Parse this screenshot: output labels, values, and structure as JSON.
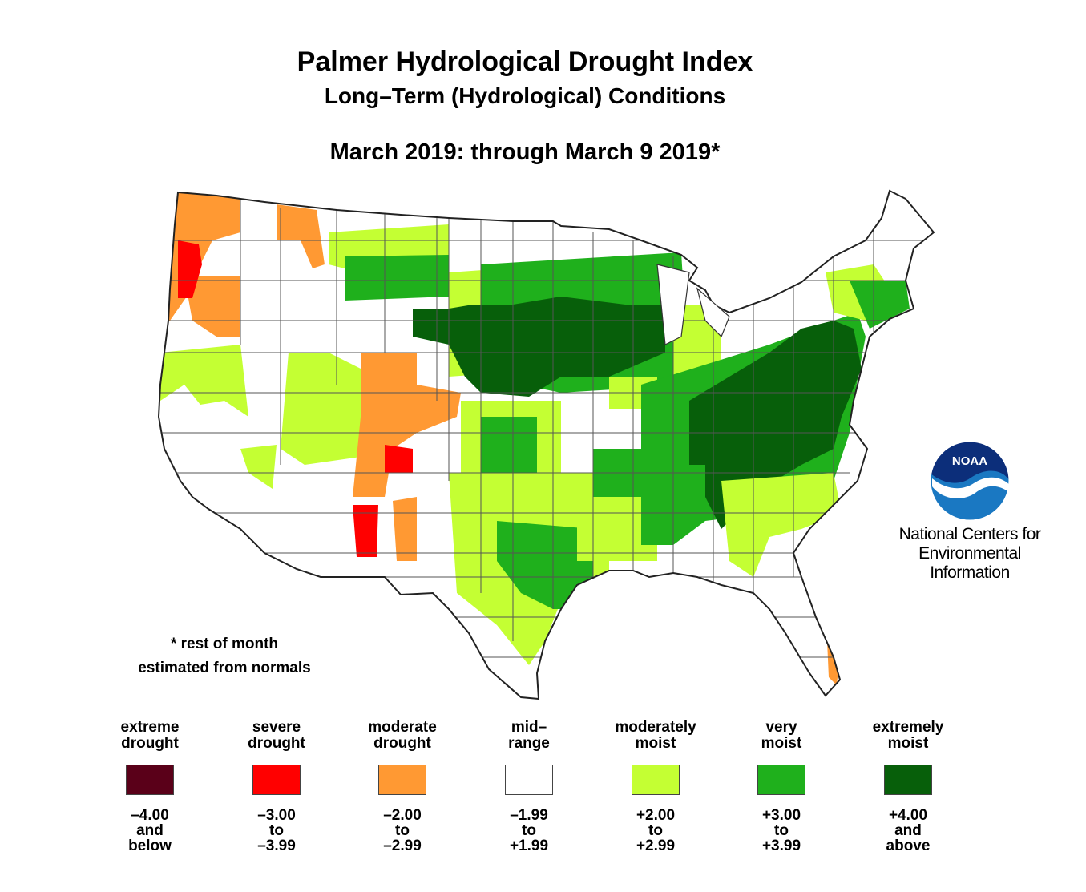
{
  "header": {
    "title": "Palmer Hydrological Drought Index",
    "subtitle": "Long–Term (Hydrological) Conditions",
    "period": "March 2019: through March  9 2019*"
  },
  "note": {
    "line1": "* rest of month",
    "line2": "estimated from normals"
  },
  "branding": {
    "logo_text": "NOAA",
    "org_line1": "National Centers for",
    "org_line2": "Environmental",
    "org_line3": "Information"
  },
  "legend": [
    {
      "label": "extreme\ndrought",
      "range": "–4.00\nand\nbelow",
      "color": "#5a0019"
    },
    {
      "label": "severe\ndrought",
      "range": "–3.00\nto\n–3.99",
      "color": "#ff0000"
    },
    {
      "label": "moderate\ndrought",
      "range": "–2.00\nto\n–2.99",
      "color": "#ff9933"
    },
    {
      "label": "mid–\nrange",
      "range": "–1.99\nto\n+1.99",
      "color": "#ffffff"
    },
    {
      "label": "moderately\nmoist",
      "range": "+2.00\nto\n+2.99",
      "color": "#c4ff33"
    },
    {
      "label": "very\nmoist",
      "range": "+3.00\nto\n+3.99",
      "color": "#1fb01c"
    },
    {
      "label": "extremely\nmoist",
      "range": "+4.00\nand\nabove",
      "color": "#075f0a"
    }
  ],
  "map": {
    "region": "Contiguous United States",
    "style": {
      "outline": "#333333",
      "division_line": "#555555"
    }
  }
}
